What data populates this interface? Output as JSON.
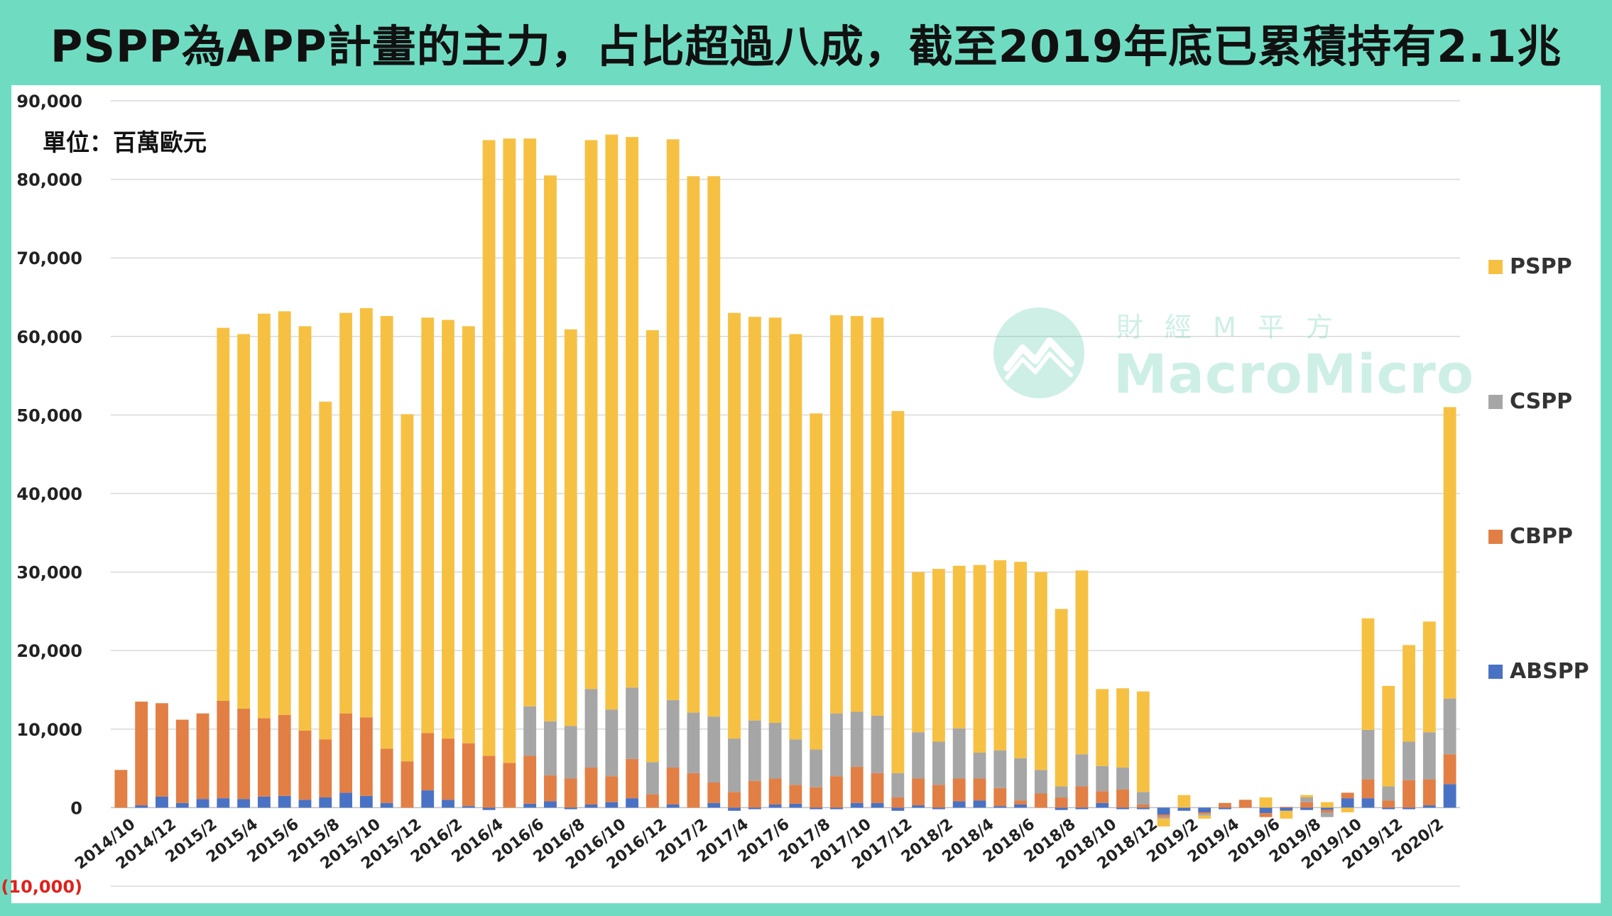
{
  "title": "PSPP為APP計畫的主力，占比超過八成，截至2019年底已累積持有2.1兆",
  "unit_label": "單位：百萬歐元",
  "watermark": {
    "cn": "財經M平方",
    "en": "MacroMicro"
  },
  "colors": {
    "frame": "#6fdcc2",
    "PSPP": "#f6c143",
    "CSPP": "#a6a6a6",
    "CBPP": "#e27f45",
    "ABSPP": "#4a72c4",
    "negative_tick": "#e0201b",
    "grid": "#d9d9d9"
  },
  "chart_data": {
    "type": "bar",
    "stacked": true,
    "ylim": [
      -10000,
      90000
    ],
    "yticks": [
      90000,
      80000,
      70000,
      60000,
      50000,
      40000,
      30000,
      20000,
      10000,
      0,
      -10000
    ],
    "ytick_labels": [
      "90,000",
      "80,000",
      "70,000",
      "60,000",
      "50,000",
      "40,000",
      "30,000",
      "20,000",
      "10,000",
      "0",
      "(10,000)"
    ],
    "grid": true,
    "legend_position": "right",
    "legend_order": [
      "PSPP",
      "CSPP",
      "CBPP",
      "ABSPP"
    ],
    "categories": [
      "2014/10",
      "2014/11",
      "2014/12",
      "2015/1",
      "2015/2",
      "2015/3",
      "2015/4",
      "2015/5",
      "2015/6",
      "2015/7",
      "2015/8",
      "2015/9",
      "2015/10",
      "2015/11",
      "2015/12",
      "2016/1",
      "2016/2",
      "2016/3",
      "2016/4",
      "2016/5",
      "2016/6",
      "2016/7",
      "2016/8",
      "2016/9",
      "2016/10",
      "2016/11",
      "2016/12",
      "2017/1",
      "2017/2",
      "2017/3",
      "2017/4",
      "2017/5",
      "2017/6",
      "2017/7",
      "2017/8",
      "2017/9",
      "2017/10",
      "2017/11",
      "2017/12",
      "2018/1",
      "2018/2",
      "2018/3",
      "2018/4",
      "2018/5",
      "2018/6",
      "2018/7",
      "2018/8",
      "2018/9",
      "2018/10",
      "2018/11",
      "2018/12",
      "2019/1",
      "2019/2",
      "2019/3",
      "2019/4",
      "2019/5",
      "2019/6",
      "2019/7",
      "2019/8",
      "2019/9",
      "2019/10",
      "2019/11",
      "2019/12",
      "2020/1",
      "2020/2",
      "2020/3"
    ],
    "x_tick_labels": [
      "2014/10",
      "2014/12",
      "2015/2",
      "2015/4",
      "2015/6",
      "2015/8",
      "2015/10",
      "2015/12",
      "2016/2",
      "2016/4",
      "2016/6",
      "2016/8",
      "2016/10",
      "2016/12",
      "2017/2",
      "2017/4",
      "2017/6",
      "2017/8",
      "2017/10",
      "2017/12",
      "2018/2",
      "2018/4",
      "2018/6",
      "2018/8",
      "2018/10",
      "2018/12",
      "2019/2",
      "2019/4",
      "2019/6",
      "2019/8",
      "2019/10",
      "2019/12",
      "2020/2"
    ],
    "series": [
      {
        "name": "ABSPP",
        "values": [
          0,
          300,
          1400,
          600,
          1100,
          1200,
          1100,
          1400,
          1500,
          1000,
          1300,
          1900,
          1500,
          600,
          0,
          2200,
          1000,
          200,
          -300,
          0,
          500,
          800,
          -200,
          400,
          700,
          1200,
          0,
          400,
          0,
          600,
          -400,
          -200,
          400,
          500,
          -200,
          -200,
          600,
          600,
          -400,
          300,
          -200,
          800,
          900,
          200,
          400,
          0,
          -300,
          -200,
          600,
          -200,
          -200,
          -900,
          -400,
          -600,
          -200,
          0,
          -700,
          -400,
          -300,
          -300,
          1200,
          1200,
          -200,
          -200,
          300,
          3000
        ]
      },
      {
        "name": "CBPP",
        "values": [
          4800,
          13200,
          11900,
          10600,
          10900,
          12400,
          11500,
          10000,
          10300,
          8800,
          7400,
          10100,
          10000,
          6900,
          5900,
          7300,
          7800,
          8000,
          6600,
          5700,
          6100,
          3300,
          3700,
          4700,
          3300,
          5000,
          1700,
          4700,
          4400,
          2600,
          2000,
          3400,
          3300,
          2400,
          2600,
          4000,
          4600,
          3800,
          1300,
          3400,
          2900,
          2900,
          2800,
          2300,
          500,
          1800,
          1300,
          2700,
          1500,
          2300,
          400,
          -300,
          0,
          -200,
          600,
          1000,
          -500,
          100,
          700,
          -300,
          700,
          2400,
          900,
          3500,
          3300,
          3800
        ]
      },
      {
        "name": "CSPP",
        "values": [
          0,
          0,
          0,
          0,
          0,
          0,
          0,
          0,
          0,
          0,
          0,
          0,
          0,
          0,
          0,
          0,
          0,
          0,
          0,
          0,
          6300,
          6900,
          6700,
          10000,
          8500,
          9100,
          4100,
          8600,
          7700,
          8400,
          6800,
          7700,
          7100,
          5800,
          4800,
          8000,
          7000,
          7300,
          3100,
          5900,
          5500,
          6400,
          3300,
          4800,
          5400,
          3000,
          1400,
          4100,
          3200,
          2800,
          1600,
          -200,
          0,
          -200,
          0,
          0,
          0,
          0,
          600,
          -600,
          0,
          6300,
          1800,
          4900,
          6000,
          7100
        ]
      },
      {
        "name": "PSPP",
        "values": [
          0,
          0,
          0,
          0,
          0,
          47500,
          47700,
          51500,
          51400,
          51500,
          43000,
          51000,
          52100,
          55100,
          44200,
          52900,
          53300,
          53100,
          78400,
          79500,
          72300,
          69500,
          50500,
          69900,
          73200,
          70100,
          55000,
          71400,
          68300,
          68800,
          54200,
          51400,
          51600,
          51600,
          42800,
          50700,
          50400,
          50700,
          46100,
          20400,
          22000,
          20700,
          23900,
          24200,
          25000,
          25200,
          22600,
          23400,
          9800,
          10100,
          12800,
          -1000,
          1600,
          -400,
          0,
          0,
          1300,
          -1000,
          300,
          700,
          -600,
          14200,
          12800,
          12300,
          14100,
          37100
        ]
      }
    ]
  }
}
